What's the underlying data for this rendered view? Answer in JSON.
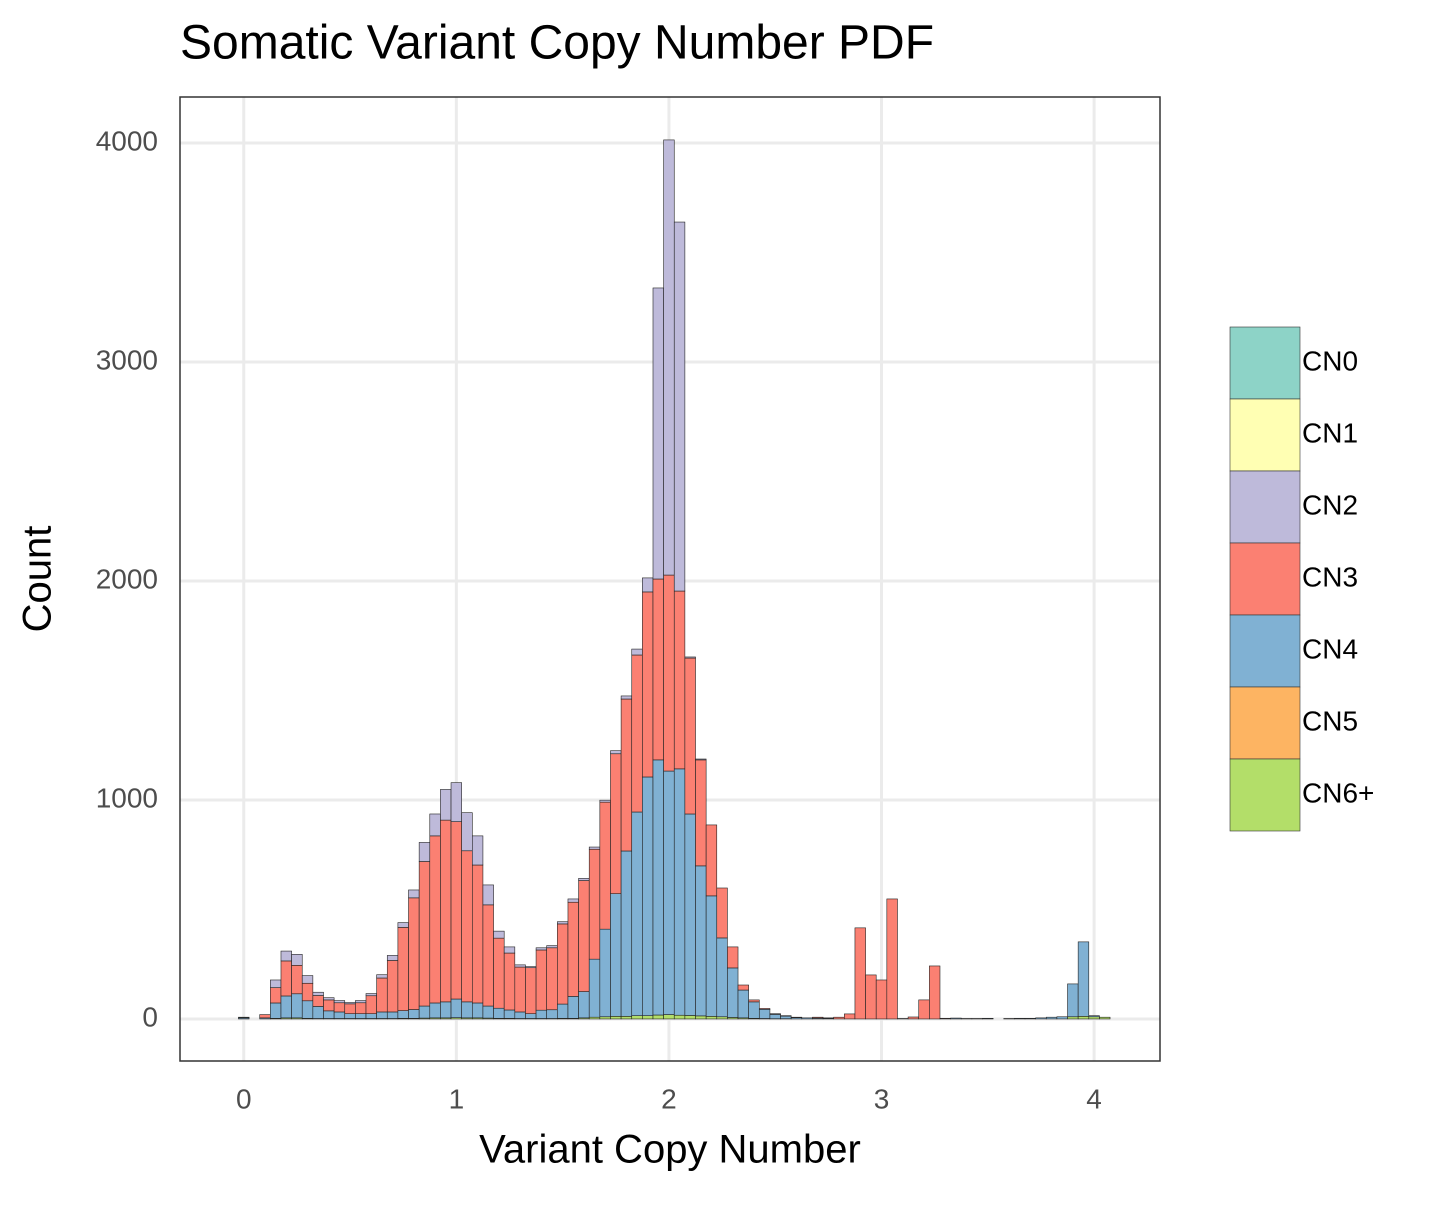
{
  "chart_data": {
    "type": "histogram",
    "title": "Somatic Variant Copy Number PDF",
    "x_label": "Variant Copy Number",
    "y_label": "Count",
    "bins": [
      -0.025,
      0.025,
      0.075,
      0.125,
      0.175,
      0.225,
      0.275,
      0.325,
      0.375,
      0.425,
      0.475,
      0.525,
      0.575,
      0.625,
      0.675,
      0.725,
      0.775,
      0.825,
      0.875,
      0.925,
      0.975,
      1.025,
      1.075,
      1.125,
      1.175,
      1.225,
      1.275,
      1.325,
      1.375,
      1.425,
      1.475,
      1.525,
      1.575,
      1.625,
      1.675,
      1.725,
      1.775,
      1.825,
      1.875,
      1.925,
      1.975,
      2.025,
      2.075,
      2.125,
      2.175,
      2.225,
      2.275,
      2.325,
      2.375,
      2.425,
      2.475,
      2.525,
      2.575,
      2.625,
      2.675,
      2.725,
      2.775,
      2.825,
      2.875,
      2.925,
      2.975,
      3.025,
      3.075,
      3.125,
      3.175,
      3.225,
      3.275,
      3.325,
      3.375,
      3.425,
      3.475,
      3.525,
      3.575,
      3.625,
      3.675,
      3.725,
      3.775,
      3.825,
      3.875,
      3.925,
      3.975,
      4.025,
      4.075
    ],
    "series": [
      {
        "name": "CN0",
        "color": "#8DD3C7",
        "values": [
          3,
          0,
          0,
          0,
          0,
          0,
          0,
          0,
          0,
          0,
          0,
          0,
          0,
          0,
          0,
          0,
          0,
          0,
          0,
          0,
          0,
          0,
          0,
          0,
          0,
          0,
          0,
          0,
          0,
          0,
          0,
          0,
          0,
          0,
          0,
          0,
          0,
          0,
          0,
          0,
          0,
          0,
          0,
          0,
          0,
          0,
          0,
          0,
          0,
          0,
          0,
          0,
          0,
          0,
          0,
          0,
          0,
          0,
          0,
          0,
          0,
          0,
          0,
          0,
          0,
          0,
          0,
          0,
          0,
          0,
          0,
          0,
          0,
          0,
          0,
          0,
          0,
          0,
          0,
          0,
          0,
          0
        ]
      },
      {
        "name": "CN1",
        "color": "#FFFFB3",
        "values": [
          0,
          0,
          0,
          0,
          0,
          0,
          0,
          0,
          0,
          0,
          0,
          0,
          0,
          0,
          0,
          0,
          0,
          0,
          0,
          0,
          0,
          0,
          0,
          0,
          0,
          0,
          0,
          0,
          0,
          0,
          0,
          0,
          0,
          0,
          0,
          0,
          0,
          0,
          0,
          0,
          0,
          0,
          0,
          0,
          0,
          0,
          0,
          0,
          0,
          0,
          0,
          0,
          0,
          0,
          0,
          0,
          0,
          0,
          0,
          0,
          0,
          0,
          0,
          0,
          0,
          0,
          0,
          0,
          0,
          0,
          0,
          0,
          0,
          0,
          0,
          0,
          0,
          0,
          0,
          0,
          0,
          0
        ]
      },
      {
        "name": "CN2",
        "color": "#BEBADA",
        "values": [
          0,
          0,
          0,
          35,
          45,
          50,
          35,
          15,
          10,
          10,
          6,
          10,
          10,
          15,
          23,
          22,
          36,
          87,
          100,
          140,
          178,
          174,
          133,
          91,
          32,
          28,
          10,
          5,
          10,
          10,
          10,
          15,
          10,
          10,
          9,
          14,
          14,
          27,
          64,
          1329,
          1987,
          1685,
          5,
          4,
          0,
          0,
          0,
          0,
          0,
          0,
          0,
          0,
          0,
          0,
          0,
          0,
          0,
          0,
          0,
          0,
          0,
          0,
          0,
          0,
          0,
          0,
          0,
          0,
          0,
          0,
          0,
          0,
          0,
          0,
          0,
          0,
          0,
          0,
          0,
          0,
          0,
          0
        ]
      },
      {
        "name": "CN3",
        "color": "#FB8072",
        "values": [
          0,
          0,
          15,
          70,
          160,
          130,
          80,
          50,
          50,
          42,
          45,
          50,
          82,
          155,
          235,
          380,
          510,
          660,
          763,
          830,
          810,
          690,
          630,
          462,
          320,
          260,
          205,
          210,
          275,
          283,
          366,
          430,
          507,
          502,
          580,
          639,
          694,
          717,
          845,
          826,
          895,
          812,
          712,
          484,
          324,
          228,
          96,
          23,
          9,
          4,
          3,
          2,
          2,
          0,
          4,
          2,
          8,
          23,
          416,
          201,
          178,
          548,
          2,
          9,
          87,
          242,
          3,
          0,
          0,
          0,
          0,
          0,
          0,
          0,
          0,
          0,
          0,
          0,
          0,
          0,
          0,
          0
        ]
      },
      {
        "name": "CN4",
        "color": "#80B1D3",
        "values": [
          5,
          0,
          5,
          70,
          100,
          110,
          80,
          55,
          35,
          30,
          22,
          22,
          22,
          30,
          30,
          35,
          40,
          55,
          68,
          73,
          85,
          73,
          68,
          55,
          46,
          38,
          30,
          22,
          38,
          40,
          65,
          100,
          120,
          265,
          400,
          560,
          755,
          930,
          1090,
          1165,
          1112,
          1125,
          920,
          685,
          550,
          360,
          226,
          127,
          75,
          42,
          20,
          12,
          6,
          5,
          4,
          3,
          0,
          0,
          0,
          0,
          0,
          0,
          0,
          0,
          0,
          0,
          0,
          4,
          2,
          2,
          3,
          0,
          2,
          3,
          3,
          5,
          8,
          10,
          150,
          340,
          5,
          0
        ]
      },
      {
        "name": "CN5",
        "color": "#FDB462",
        "values": [
          0,
          0,
          0,
          0,
          0,
          0,
          0,
          0,
          0,
          0,
          0,
          0,
          0,
          0,
          0,
          0,
          0,
          0,
          0,
          0,
          0,
          0,
          0,
          0,
          0,
          0,
          0,
          0,
          0,
          0,
          0,
          0,
          0,
          0,
          0,
          0,
          0,
          0,
          0,
          0,
          0,
          0,
          0,
          0,
          0,
          0,
          0,
          0,
          0,
          0,
          0,
          0,
          0,
          0,
          0,
          0,
          0,
          0,
          0,
          0,
          0,
          0,
          0,
          0,
          0,
          0,
          0,
          0,
          0,
          0,
          0,
          0,
          0,
          0,
          0,
          0,
          0,
          0,
          0,
          0,
          0,
          0
        ]
      },
      {
        "name": "CN6+",
        "color": "#B3DE69",
        "values": [
          0,
          0,
          0,
          3,
          5,
          5,
          3,
          2,
          2,
          2,
          2,
          2,
          2,
          2,
          2,
          3,
          3,
          4,
          5,
          5,
          6,
          5,
          5,
          4,
          3,
          3,
          2,
          2,
          2,
          2,
          3,
          3,
          5,
          8,
          10,
          12,
          12,
          15,
          15,
          18,
          20,
          17,
          16,
          14,
          12,
          10,
          7,
          5,
          3,
          2,
          1,
          1,
          0,
          0,
          0,
          0,
          0,
          0,
          0,
          0,
          0,
          0,
          0,
          0,
          0,
          0,
          0,
          0,
          0,
          0,
          0,
          0,
          0,
          0,
          0,
          0,
          0,
          0,
          10,
          12,
          10,
          8
        ]
      }
    ],
    "xlim": [
      -0.3,
      4.31
    ],
    "ylim": [
      -192,
      4210
    ],
    "xticks": [
      0,
      1,
      2,
      3,
      4
    ],
    "yticks": [
      0,
      1000,
      2000,
      3000,
      4000
    ],
    "grid": true,
    "legend": "right"
  }
}
